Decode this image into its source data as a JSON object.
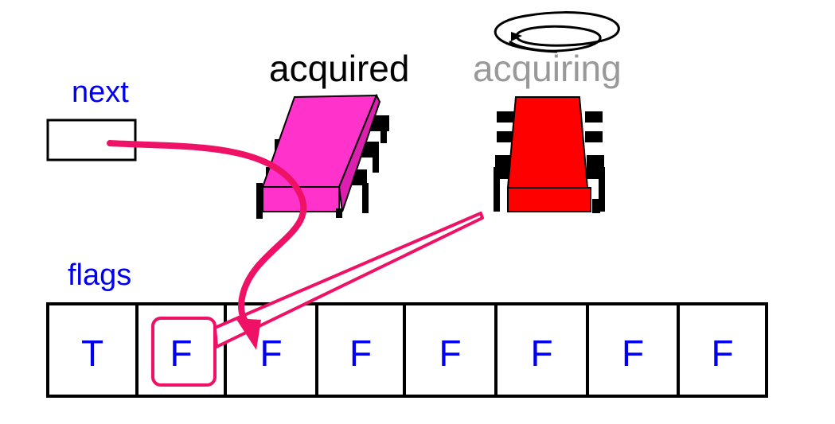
{
  "labels": {
    "next": "next",
    "acquired": "acquired",
    "acquiring": "acquiring",
    "flags": "flags"
  },
  "flags": [
    "T",
    "F",
    "F",
    "F",
    "F",
    "F",
    "F",
    "F"
  ],
  "highlighted_flag_index": 1,
  "colors": {
    "label_blue": "#0000ee",
    "acquired_chip": "#ff33cc",
    "acquiring_chip": "#ff0000",
    "arrow": "#ee1166",
    "acquiring_text": "#999999",
    "outline": "#000000"
  },
  "icons": {
    "acquired_chip": "chip-icon",
    "acquiring_chip": "chip-icon",
    "spinning": "spiral-icon"
  }
}
